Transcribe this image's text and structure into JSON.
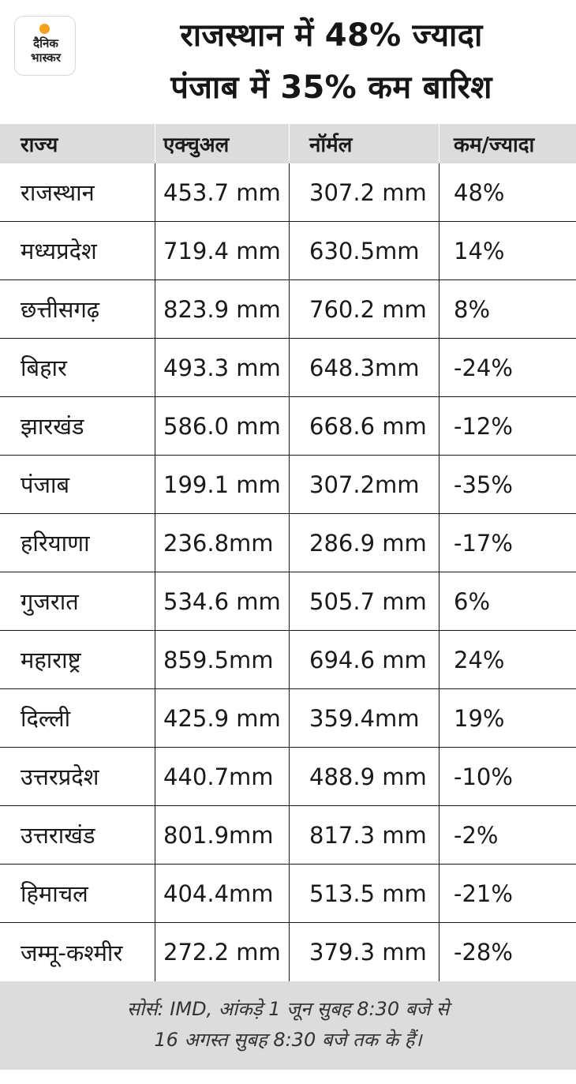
{
  "logo": {
    "line1": "दैनिक",
    "line2": "भास्कर",
    "accent_color": "#f3a21a"
  },
  "title": {
    "line1": "राजस्थान में 48% ज्यादा",
    "line2": "पंजाब में 35% कम बारिश"
  },
  "table": {
    "columns": [
      "राज्य",
      "एक्चुअल",
      "नॉर्मल",
      "कम/ज्यादा"
    ],
    "rows": [
      [
        "राजस्थान",
        " 453.7 mm",
        "307.2 mm",
        "48%"
      ],
      [
        "मध्यप्रदेश",
        "719.4 mm",
        "630.5mm",
        "14%"
      ],
      [
        "छत्तीसगढ़",
        "823.9 mm",
        "760.2 mm",
        "8%"
      ],
      [
        "बिहार",
        "493.3 mm",
        "648.3mm",
        "-24%"
      ],
      [
        "झारखंड",
        "586.0 mm",
        "668.6 mm",
        "-12%"
      ],
      [
        "पंजाब",
        "199.1 mm",
        "307.2mm",
        "-35%"
      ],
      [
        "हरियाणा",
        "236.8mm",
        "286.9 mm",
        "-17%"
      ],
      [
        "गुजरात",
        "534.6 mm",
        "505.7 mm",
        "6%"
      ],
      [
        "महाराष्ट्र",
        "859.5mm",
        "694.6 mm",
        "24%"
      ],
      [
        "दिल्ली",
        "425.9 mm",
        "359.4mm",
        "19%"
      ],
      [
        "उत्तरप्रदेश",
        "440.7mm",
        "488.9 mm",
        "-10%"
      ],
      [
        "उत्तराखंड",
        "801.9mm",
        "817.3 mm",
        "-2%"
      ],
      [
        "हिमाचल",
        "404.4mm",
        "513.5 mm",
        "-21%"
      ],
      [
        "जम्मू-कश्मीर",
        "272.2 mm",
        "379.3 mm",
        "-28%"
      ]
    ]
  },
  "footer": {
    "line1": "सोर्स: IMD, आंकड़े 1 जून सुबह 8:30 बजे से",
    "line2": "16 अगस्त सुबह 8:30 बजे तक के हैं।"
  }
}
